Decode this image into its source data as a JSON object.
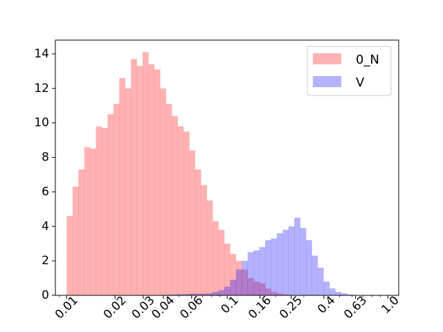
{
  "chart_data": {
    "type": "histogram",
    "x_scale": "log",
    "xlim": [
      0.0085,
      1.17
    ],
    "ylim": [
      0,
      14.8
    ],
    "grid": false,
    "legend_position": "top-right",
    "x_ticks": [
      {
        "value": 0.01,
        "label": "0.01"
      },
      {
        "value": 0.02,
        "label": "0.02"
      },
      {
        "value": 0.03,
        "label": "0.03"
      },
      {
        "value": 0.04,
        "label": "0.04"
      },
      {
        "value": 0.06,
        "label": "0.06"
      },
      {
        "value": 0.1,
        "label": "0.1"
      },
      {
        "value": 0.16,
        "label": "0.16"
      },
      {
        "value": 0.25,
        "label": "0.25"
      },
      {
        "value": 0.4,
        "label": "0.4"
      },
      {
        "value": 0.63,
        "label": "0.63"
      },
      {
        "value": 1.0,
        "label": "1.0"
      }
    ],
    "y_ticks": [
      {
        "value": 0,
        "label": "0"
      },
      {
        "value": 2,
        "label": "2"
      },
      {
        "value": 4,
        "label": "4"
      },
      {
        "value": 6,
        "label": "6"
      },
      {
        "value": 8,
        "label": "8"
      },
      {
        "value": 10,
        "label": "10"
      },
      {
        "value": 12,
        "label": "12"
      },
      {
        "value": 14,
        "label": "14"
      }
    ],
    "bins": {
      "log10_start": -2,
      "log10_step": 0.03636,
      "count": 55
    },
    "series": [
      {
        "name": "0_N",
        "color": "#ff0000",
        "opacity": 0.3,
        "values": [
          4.6,
          6.3,
          7.3,
          8.6,
          8.5,
          9.8,
          9.7,
          10.5,
          11.1,
          12.6,
          12.0,
          13.7,
          13.3,
          14.1,
          13.4,
          13.1,
          12.0,
          11.1,
          10.4,
          9.8,
          9.5,
          8.4,
          7.3,
          6.4,
          5.5,
          4.3,
          3.8,
          3.0,
          2.4,
          2.0,
          1.5,
          1.0,
          0.8,
          0.7,
          0.4,
          0.2,
          0.1,
          0.05,
          0.02,
          0.01,
          0,
          0,
          0,
          0,
          0,
          0,
          0,
          0,
          0,
          0,
          0,
          0,
          0,
          0,
          0
        ]
      },
      {
        "name": "V",
        "color": "#0000ff",
        "opacity": 0.3,
        "values": [
          0,
          0,
          0,
          0,
          0,
          0,
          0,
          0,
          0,
          0,
          0,
          0,
          0,
          0,
          0.02,
          0.02,
          0.03,
          0.04,
          0.05,
          0.06,
          0.08,
          0.1,
          0.1,
          0.1,
          0.12,
          0.2,
          0.3,
          0.5,
          0.9,
          1.5,
          2.0,
          2.5,
          2.6,
          2.8,
          3.2,
          3.3,
          3.6,
          3.8,
          4.0,
          4.5,
          3.9,
          3.2,
          2.3,
          1.6,
          0.8,
          0.4,
          0.2,
          0.12,
          0.05,
          0.02,
          0.01,
          0,
          0,
          0,
          0
        ]
      }
    ]
  }
}
